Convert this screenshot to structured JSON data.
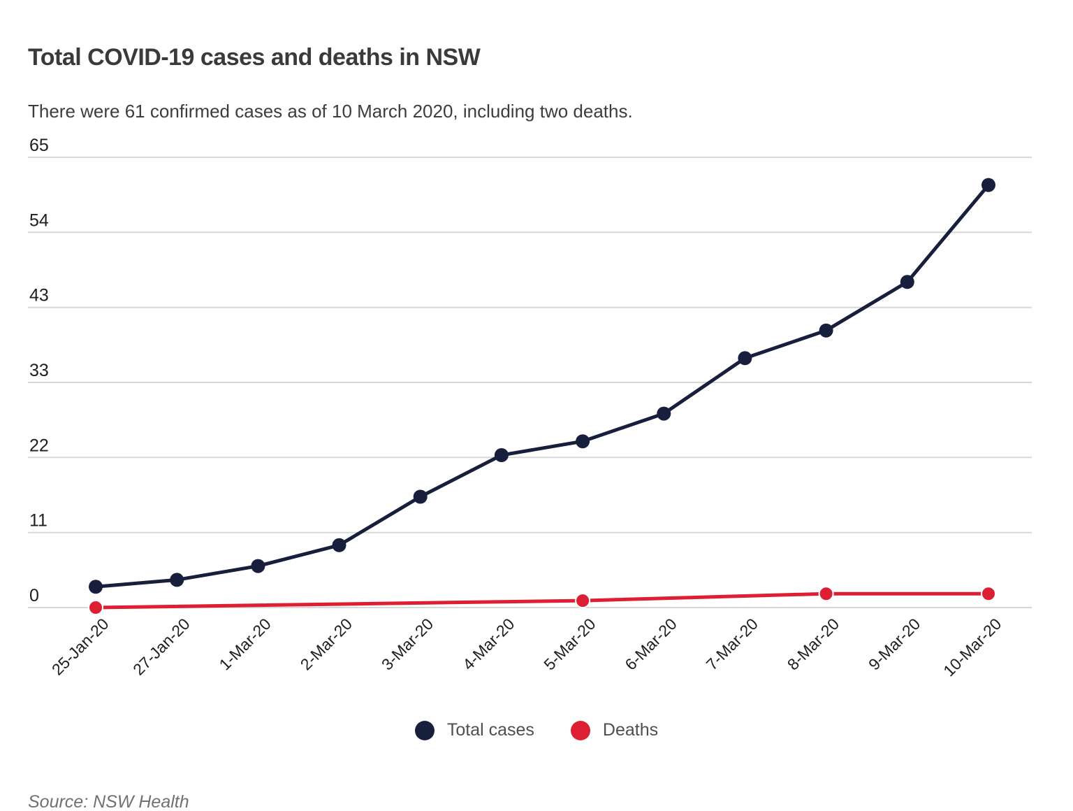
{
  "header": {
    "title": "Total COVID-19 cases and deaths in NSW",
    "subtitle": "There were 61 confirmed cases as of 10 March 2020, including two deaths."
  },
  "chart_data": {
    "type": "line",
    "title": "Total COVID-19 cases and deaths in NSW",
    "categories": [
      "25-Jan-20",
      "27-Jan-20",
      "1-Mar-20",
      "2-Mar-20",
      "3-Mar-20",
      "4-Mar-20",
      "5-Mar-20",
      "6-Mar-20",
      "7-Mar-20",
      "8-Mar-20",
      "9-Mar-20",
      "10-Mar-20"
    ],
    "series": [
      {
        "name": "Total cases",
        "color": "#171f3c",
        "values": [
          3,
          4,
          6,
          9,
          16,
          22,
          24,
          28,
          36,
          40,
          47,
          61
        ]
      },
      {
        "name": "Deaths",
        "color": "#dc1f33",
        "points": [
          [
            0,
            0
          ],
          [
            6,
            1
          ],
          [
            9,
            2
          ],
          [
            11,
            2
          ]
        ]
      }
    ],
    "xlabel": "",
    "ylabel": "",
    "ylim": [
      0,
      65
    ],
    "yticks": [
      {
        "label": "65",
        "v": 65
      },
      {
        "label": "54",
        "v": 54.17
      },
      {
        "label": "43",
        "v": 43.33
      },
      {
        "label": "33",
        "v": 32.5
      },
      {
        "label": "22",
        "v": 21.67
      },
      {
        "label": "11",
        "v": 10.83
      },
      {
        "label": "0",
        "v": 0
      }
    ],
    "grid": "horizontal",
    "gridline_color": "#d8d8d8",
    "label_color": "#1e1e1e",
    "legend_position": "bottom"
  },
  "legend": {
    "items": [
      {
        "label": "Total cases",
        "color": "#171f3c"
      },
      {
        "label": "Deaths",
        "color": "#dc1f33"
      }
    ]
  },
  "source": "Source: NSW Health"
}
